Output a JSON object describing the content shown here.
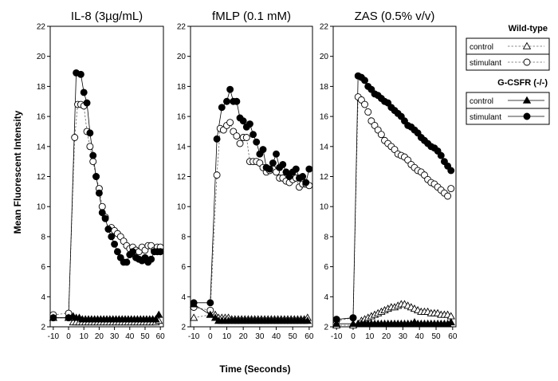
{
  "chart_data": {
    "type": "line",
    "ylabel": "Mean Fluorescent Intensity",
    "xlabel": "Time (Seconds)",
    "ylim": [
      2,
      22
    ],
    "yticks": [
      2,
      4,
      6,
      8,
      10,
      12,
      14,
      16,
      18,
      20,
      22
    ],
    "xlim": [
      -12,
      62
    ],
    "xticks": [
      -10,
      0,
      10,
      20,
      30,
      40,
      50,
      60
    ],
    "legend": {
      "groups": [
        {
          "header": "Wild-type",
          "entries": [
            {
              "label": "control",
              "marker": "open-triangle",
              "line": "dashed"
            },
            {
              "label": "stimulant",
              "marker": "open-circle",
              "line": "dashed"
            }
          ]
        },
        {
          "header": "G-CSFR (-/-)",
          "entries": [
            {
              "label": "control",
              "marker": "filled-triangle",
              "line": "solid"
            },
            {
              "label": "stimulant",
              "marker": "filled-circle",
              "line": "solid"
            }
          ]
        }
      ]
    },
    "panels": [
      {
        "title": "IL-8 (3µg/mL)",
        "series": [
          {
            "name": "Wild-type control",
            "marker": "open-triangle",
            "line": "dashed",
            "x": [
              -10,
              0,
              3,
              5,
              7,
              9,
              11,
              13,
              15,
              17,
              19,
              21,
              23,
              25,
              27,
              29,
              31,
              33,
              35,
              37,
              39,
              41,
              43,
              45,
              47,
              49,
              51,
              53,
              55,
              57,
              59
            ],
            "y": [
              2.6,
              2.6,
              2.3,
              2.3,
              2.3,
              2.3,
              2.3,
              2.3,
              2.3,
              2.3,
              2.3,
              2.3,
              2.3,
              2.3,
              2.3,
              2.3,
              2.3,
              2.3,
              2.3,
              2.3,
              2.3,
              2.3,
              2.3,
              2.3,
              2.3,
              2.3,
              2.3,
              2.3,
              2.3,
              2.3,
              2.4
            ]
          },
          {
            "name": "Wild-type stimulant",
            "marker": "open-circle",
            "line": "dashed",
            "x": [
              -10,
              0,
              4,
              6,
              8,
              10,
              12,
              14,
              16,
              18,
              20,
              22,
              24,
              26,
              28,
              30,
              32,
              34,
              36,
              38,
              40,
              42,
              44,
              46,
              48,
              50,
              52,
              54,
              56,
              58,
              60
            ],
            "y": [
              2.8,
              2.9,
              14.6,
              16.8,
              16.8,
              16.7,
              15.0,
              14.0,
              13.0,
              12.0,
              11.2,
              10.0,
              9.3,
              8.5,
              8.6,
              8.4,
              8.2,
              8.0,
              7.7,
              7.4,
              7.2,
              7.3,
              7.1,
              7.0,
              7.3,
              7.1,
              7.4,
              7.4,
              7.1,
              7.3,
              7.3
            ]
          },
          {
            "name": "G-CSFR control",
            "marker": "filled-triangle",
            "line": "solid",
            "x": [
              -10,
              0,
              3,
              5,
              7,
              9,
              11,
              13,
              15,
              17,
              19,
              21,
              23,
              25,
              27,
              29,
              31,
              33,
              35,
              37,
              39,
              41,
              43,
              45,
              47,
              49,
              51,
              53,
              55,
              57,
              59
            ],
            "y": [
              2.6,
              2.6,
              2.7,
              2.6,
              2.6,
              2.5,
              2.5,
              2.5,
              2.5,
              2.5,
              2.5,
              2.5,
              2.5,
              2.5,
              2.5,
              2.5,
              2.5,
              2.5,
              2.5,
              2.5,
              2.5,
              2.5,
              2.5,
              2.5,
              2.5,
              2.5,
              2.5,
              2.5,
              2.5,
              2.5,
              2.8
            ]
          },
          {
            "name": "G-CSFR stimulant",
            "marker": "filled-circle",
            "line": "solid",
            "x": [
              -10,
              0,
              5,
              8,
              10,
              12,
              14,
              16,
              18,
              20,
              22,
              24,
              26,
              28,
              30,
              32,
              34,
              36,
              38,
              40,
              42,
              44,
              46,
              48,
              50,
              52,
              54,
              56,
              58,
              60
            ],
            "y": [
              2.6,
              2.6,
              18.9,
              18.8,
              17.6,
              16.9,
              14.9,
              13.4,
              12.0,
              10.9,
              9.6,
              9.2,
              8.5,
              8.0,
              7.5,
              7.0,
              6.6,
              6.3,
              6.3,
              6.8,
              7.0,
              6.6,
              6.5,
              6.4,
              6.6,
              6.3,
              6.5,
              7.0,
              7.0,
              7.0
            ]
          }
        ]
      },
      {
        "title": "fMLP (0.1 mM)",
        "series": [
          {
            "name": "Wild-type control",
            "marker": "open-triangle",
            "line": "dashed",
            "x": [
              -10,
              0,
              3,
              5,
              7,
              9,
              11,
              13,
              15,
              17,
              19,
              21,
              23,
              25,
              27,
              29,
              31,
              33,
              35,
              37,
              39,
              41,
              43,
              45,
              47,
              49,
              51,
              53,
              55,
              57,
              59
            ],
            "y": [
              2.6,
              2.8,
              2.8,
              2.6,
              2.6,
              2.6,
              2.6,
              2.5,
              2.5,
              2.5,
              2.5,
              2.5,
              2.5,
              2.5,
              2.5,
              2.5,
              2.5,
              2.5,
              2.5,
              2.5,
              2.5,
              2.5,
              2.5,
              2.5,
              2.5,
              2.5,
              2.5,
              2.5,
              2.5,
              2.5,
              2.6
            ]
          },
          {
            "name": "Wild-type stimulant",
            "marker": "open-circle",
            "line": "dashed",
            "x": [
              -10,
              0,
              4,
              6,
              8,
              10,
              12,
              14,
              16,
              18,
              20,
              22,
              24,
              26,
              28,
              30,
              32,
              34,
              36,
              38,
              40,
              42,
              44,
              46,
              48,
              50,
              52,
              54,
              56,
              58,
              60
            ],
            "y": [
              3.3,
              3.1,
              12.1,
              15.2,
              15.1,
              15.4,
              15.6,
              15.0,
              14.7,
              14.2,
              14.6,
              14.6,
              13.0,
              13.0,
              13.0,
              12.9,
              12.6,
              12.3,
              12.4,
              12.5,
              12.3,
              11.9,
              11.9,
              11.7,
              11.6,
              11.8,
              11.9,
              11.3,
              11.5,
              11.5,
              11.4
            ]
          },
          {
            "name": "G-CSFR control",
            "marker": "filled-triangle",
            "line": "solid",
            "x": [
              -10,
              0,
              3,
              5,
              7,
              9,
              11,
              13,
              15,
              17,
              19,
              21,
              23,
              25,
              27,
              29,
              31,
              33,
              35,
              37,
              39,
              41,
              43,
              45,
              47,
              49,
              51,
              53,
              55,
              57,
              59
            ],
            "y": [
              3.5,
              2.8,
              2.6,
              2.4,
              2.4,
              2.4,
              2.4,
              2.4,
              2.4,
              2.4,
              2.4,
              2.4,
              2.4,
              2.4,
              2.4,
              2.4,
              2.4,
              2.4,
              2.4,
              2.4,
              2.4,
              2.4,
              2.4,
              2.4,
              2.4,
              2.4,
              2.4,
              2.4,
              2.4,
              2.4,
              2.4
            ]
          },
          {
            "name": "G-CSFR stimulant",
            "marker": "filled-circle",
            "line": "solid",
            "x": [
              -10,
              0,
              4,
              7,
              10,
              12,
              14,
              16,
              18,
              20,
              22,
              24,
              26,
              28,
              30,
              32,
              34,
              36,
              38,
              40,
              42,
              44,
              46,
              48,
              50,
              52,
              54,
              56,
              58,
              60
            ],
            "y": [
              3.6,
              3.6,
              14.5,
              16.6,
              17.0,
              17.8,
              17.0,
              17.0,
              15.9,
              15.7,
              15.3,
              15.5,
              14.8,
              14.3,
              13.5,
              13.8,
              12.6,
              12.5,
              12.9,
              13.5,
              12.6,
              12.8,
              12.3,
              12.0,
              12.3,
              12.5,
              11.9,
              12.0,
              11.6,
              12.5
            ]
          }
        ]
      },
      {
        "title": "ZAS (0.5% v/v)",
        "series": [
          {
            "name": "Wild-type control",
            "marker": "open-triangle",
            "line": "dashed",
            "x": [
              -10,
              0,
              3,
              5,
              7,
              9,
              11,
              13,
              15,
              17,
              19,
              21,
              23,
              25,
              27,
              29,
              31,
              33,
              35,
              37,
              39,
              41,
              43,
              45,
              47,
              49,
              51,
              53,
              55,
              57,
              59
            ],
            "y": [
              2.1,
              2.1,
              2.2,
              2.4,
              2.5,
              2.6,
              2.7,
              2.8,
              2.9,
              3.0,
              3.1,
              3.2,
              3.3,
              3.3,
              3.4,
              3.5,
              3.5,
              3.4,
              3.3,
              3.2,
              3.1,
              3.0,
              3.0,
              3.0,
              2.9,
              2.9,
              2.9,
              2.8,
              2.8,
              2.8,
              2.7
            ]
          },
          {
            "name": "Wild-type stimulant",
            "marker": "open-circle",
            "line": "dashed",
            "x": [
              -10,
              0,
              3,
              5,
              7,
              9,
              11,
              13,
              15,
              17,
              19,
              21,
              23,
              25,
              27,
              29,
              31,
              33,
              35,
              37,
              39,
              41,
              43,
              45,
              47,
              49,
              51,
              53,
              55,
              57,
              59
            ],
            "y": [
              2.4,
              2.6,
              17.3,
              17.1,
              16.8,
              16.3,
              15.7,
              15.4,
              15.1,
              14.8,
              14.4,
              14.2,
              14.0,
              13.8,
              13.5,
              13.4,
              13.3,
              13.1,
              12.8,
              12.6,
              12.4,
              12.3,
              12.1,
              11.8,
              11.6,
              11.5,
              11.3,
              11.1,
              10.9,
              10.7,
              11.2
            ]
          },
          {
            "name": "G-CSFR control",
            "marker": "filled-triangle",
            "line": "solid",
            "x": [
              -10,
              0,
              3,
              5,
              7,
              9,
              11,
              13,
              15,
              17,
              19,
              21,
              23,
              25,
              27,
              29,
              31,
              33,
              35,
              37,
              39,
              41,
              43,
              45,
              47,
              49,
              51,
              53,
              55,
              57,
              59
            ],
            "y": [
              2.2,
              2.2,
              2.2,
              2.2,
              2.2,
              2.2,
              2.2,
              2.2,
              2.2,
              2.2,
              2.2,
              2.2,
              2.2,
              2.2,
              2.2,
              2.2,
              2.2,
              2.2,
              2.2,
              2.3,
              2.2,
              2.2,
              2.2,
              2.2,
              2.2,
              2.2,
              2.2,
              2.2,
              2.2,
              2.2,
              2.3
            ]
          },
          {
            "name": "G-CSFR stimulant",
            "marker": "filled-circle",
            "line": "solid",
            "x": [
              -10,
              0,
              3,
              5,
              7,
              9,
              11,
              13,
              15,
              17,
              19,
              21,
              23,
              25,
              27,
              29,
              31,
              33,
              35,
              37,
              39,
              41,
              43,
              45,
              47,
              49,
              51,
              53,
              55,
              57,
              59
            ],
            "y": [
              2.5,
              2.6,
              18.7,
              18.6,
              18.4,
              18.0,
              17.8,
              17.5,
              17.4,
              17.2,
              17.0,
              16.9,
              16.6,
              16.4,
              16.2,
              16.0,
              15.7,
              15.4,
              15.3,
              15.1,
              14.9,
              14.6,
              14.4,
              14.2,
              14.0,
              13.9,
              13.7,
              13.4,
              13.0,
              12.7,
              12.4
            ]
          }
        ]
      }
    ]
  }
}
